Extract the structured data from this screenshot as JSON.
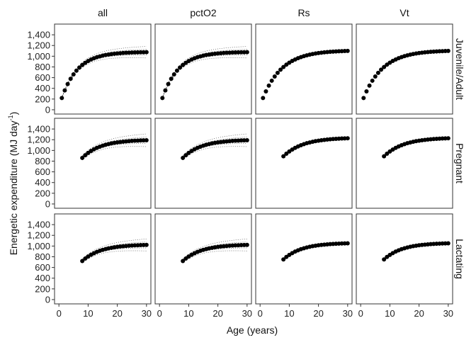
{
  "chart_data": {
    "type": "scatter",
    "title": "",
    "xlabel": "Age (years)",
    "ylabel": {
      "main": "Energetic expenditure (MJ day",
      "sup": "-1",
      "close": ")"
    },
    "columns": [
      "all",
      "pctO2",
      "Rs",
      "Vt"
    ],
    "rows": [
      "Juvenile/Adult",
      "Pregnant",
      "Lactating"
    ],
    "xlim": [
      -1.5,
      31.5
    ],
    "ylim": [
      -80,
      1600
    ],
    "xticks": [
      0,
      10,
      20,
      30
    ],
    "yticks": [
      0,
      200,
      400,
      600,
      800,
      1000,
      1200,
      1400
    ],
    "ytick_labels": [
      "0",
      "200",
      "400",
      "600",
      "800",
      "1,000",
      "1,200",
      "1,400"
    ],
    "grid": false,
    "uncertainty_lines": "dotted ribbons around fitted curve (columns all and pctO2)",
    "panels": [
      {
        "row": "Juvenile/Adult",
        "column": "all",
        "x_start": 1,
        "y_start": 220,
        "asymptote": 1080,
        "rate": 0.18,
        "band_width": 0.1,
        "bands": true
      },
      {
        "row": "Juvenile/Adult",
        "column": "pctO2",
        "x_start": 1,
        "y_start": 220,
        "asymptote": 1080,
        "rate": 0.18,
        "band_width": 0.1,
        "bands": true
      },
      {
        "row": "Juvenile/Adult",
        "column": "Rs",
        "x_start": 1,
        "y_start": 220,
        "asymptote": 1110,
        "rate": 0.15,
        "band_width": 0,
        "bands": false
      },
      {
        "row": "Juvenile/Adult",
        "column": "Vt",
        "x_start": 1,
        "y_start": 220,
        "asymptote": 1110,
        "rate": 0.15,
        "band_width": 0,
        "bands": false
      },
      {
        "row": "Pregnant",
        "column": "all",
        "x_start": 8,
        "y_start": 860,
        "asymptote": 1200,
        "rate": 0.16,
        "band_width": 0.1,
        "bands": true
      },
      {
        "row": "Pregnant",
        "column": "pctO2",
        "x_start": 8,
        "y_start": 860,
        "asymptote": 1200,
        "rate": 0.16,
        "band_width": 0.1,
        "bands": true
      },
      {
        "row": "Pregnant",
        "column": "Rs",
        "x_start": 8,
        "y_start": 890,
        "asymptote": 1240,
        "rate": 0.15,
        "band_width": 0,
        "bands": false
      },
      {
        "row": "Pregnant",
        "column": "Vt",
        "x_start": 8,
        "y_start": 890,
        "asymptote": 1240,
        "rate": 0.15,
        "band_width": 0,
        "bands": false
      },
      {
        "row": "Lactating",
        "column": "all",
        "x_start": 8,
        "y_start": 720,
        "asymptote": 1030,
        "rate": 0.16,
        "band_width": 0.11,
        "bands": true
      },
      {
        "row": "Lactating",
        "column": "pctO2",
        "x_start": 8,
        "y_start": 720,
        "asymptote": 1030,
        "rate": 0.16,
        "band_width": 0.11,
        "bands": true
      },
      {
        "row": "Lactating",
        "column": "Rs",
        "x_start": 8,
        "y_start": 750,
        "asymptote": 1060,
        "rate": 0.16,
        "band_width": 0,
        "bands": false
      },
      {
        "row": "Lactating",
        "column": "Vt",
        "x_start": 8,
        "y_start": 750,
        "asymptote": 1060,
        "rate": 0.16,
        "band_width": 0,
        "bands": false
      }
    ]
  }
}
